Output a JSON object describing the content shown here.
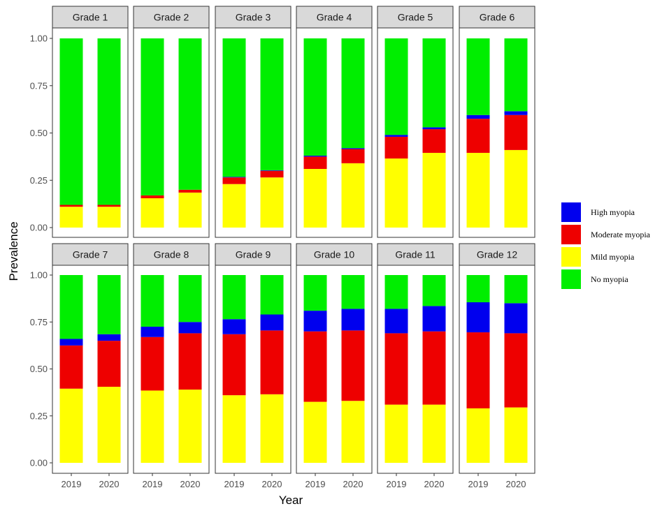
{
  "chart_data": {
    "type": "bar",
    "stacked": true,
    "xlabel": "Year",
    "ylabel": "Prevalence",
    "ylim": [
      0,
      1
    ],
    "yticks": [
      "0.00",
      "0.25",
      "0.50",
      "0.75",
      "1.00"
    ],
    "categories": [
      "2019",
      "2020"
    ],
    "legend_position": "right",
    "grid": false,
    "series_order_bottom_to_top": [
      "Mild myopia",
      "Moderate myopia",
      "High myopia",
      "No myopia"
    ],
    "legend": [
      {
        "name": "High myopia",
        "color": "#0000ee"
      },
      {
        "name": "Moderate myopia",
        "color": "#ee0000"
      },
      {
        "name": "Mild myopia",
        "color": "#ffff00"
      },
      {
        "name": "No myopia",
        "color": "#00ee00"
      }
    ],
    "panels": [
      {
        "title": "Grade 1",
        "mild": [
          0.11,
          0.11
        ],
        "moderate": [
          0.01,
          0.01
        ],
        "high": [
          0.0,
          0.0
        ]
      },
      {
        "title": "Grade 2",
        "mild": [
          0.155,
          0.185
        ],
        "moderate": [
          0.015,
          0.015
        ],
        "high": [
          0.0,
          0.0
        ]
      },
      {
        "title": "Grade 3",
        "mild": [
          0.23,
          0.265
        ],
        "moderate": [
          0.035,
          0.035
        ],
        "high": [
          0.003,
          0.003
        ]
      },
      {
        "title": "Grade 4",
        "mild": [
          0.31,
          0.34
        ],
        "moderate": [
          0.065,
          0.075
        ],
        "high": [
          0.005,
          0.005
        ]
      },
      {
        "title": "Grade 5",
        "mild": [
          0.365,
          0.395
        ],
        "moderate": [
          0.115,
          0.125
        ],
        "high": [
          0.01,
          0.01
        ]
      },
      {
        "title": "Grade 6",
        "mild": [
          0.395,
          0.41
        ],
        "moderate": [
          0.18,
          0.185
        ],
        "high": [
          0.02,
          0.02
        ]
      },
      {
        "title": "Grade 7",
        "mild": [
          0.395,
          0.405
        ],
        "moderate": [
          0.23,
          0.245
        ],
        "high": [
          0.035,
          0.035
        ]
      },
      {
        "title": "Grade 8",
        "mild": [
          0.385,
          0.39
        ],
        "moderate": [
          0.285,
          0.3
        ],
        "high": [
          0.055,
          0.06
        ]
      },
      {
        "title": "Grade 9",
        "mild": [
          0.36,
          0.365
        ],
        "moderate": [
          0.325,
          0.34
        ],
        "high": [
          0.08,
          0.085
        ]
      },
      {
        "title": "Grade 10",
        "mild": [
          0.325,
          0.33
        ],
        "moderate": [
          0.375,
          0.375
        ],
        "high": [
          0.11,
          0.115
        ]
      },
      {
        "title": "Grade 11",
        "mild": [
          0.31,
          0.31
        ],
        "moderate": [
          0.38,
          0.39
        ],
        "high": [
          0.13,
          0.135
        ]
      },
      {
        "title": "Grade 12",
        "mild": [
          0.29,
          0.295
        ],
        "moderate": [
          0.405,
          0.395
        ],
        "high": [
          0.16,
          0.16
        ]
      }
    ]
  }
}
